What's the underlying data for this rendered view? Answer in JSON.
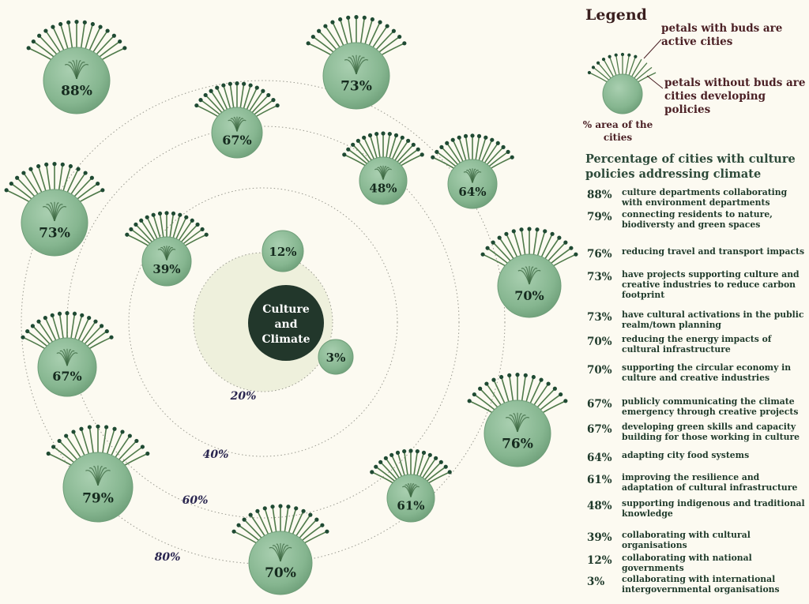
{
  "center_label": "Culture and Climate",
  "center_lines": [
    "Culture",
    "and",
    "Climate"
  ],
  "ring_labels": [
    "20%",
    "40%",
    "60%",
    "80%"
  ],
  "flowers": [
    {
      "value": "88%",
      "buds": true
    },
    {
      "value": "73%",
      "buds": true
    },
    {
      "value": "67%",
      "buds": true
    },
    {
      "value": "48%",
      "buds": true
    },
    {
      "value": "64%",
      "buds": true
    },
    {
      "value": "70%",
      "buds": true
    },
    {
      "value": "76%",
      "buds": true
    },
    {
      "value": "61%",
      "buds": true
    },
    {
      "value": "70%",
      "buds": true
    },
    {
      "value": "79%",
      "buds": true
    },
    {
      "value": "67%",
      "buds": true
    },
    {
      "value": "73%",
      "buds": true
    },
    {
      "value": "39%",
      "buds": true
    }
  ],
  "plain_circles": [
    "12%",
    "3%"
  ],
  "legend": {
    "title": "Legend",
    "petals_with_buds": "petals with buds are active cities",
    "petals_without_buds": "petals without  buds are cities developing policies",
    "area_note": "% area of the cities",
    "percentage_title": "Percentage of cities with culture policies addressing climate",
    "items": [
      {
        "value": "88%",
        "text": "culture departments collaborating with environment departments"
      },
      {
        "value": "79%",
        "text": "connecting residents to nature, biodiversty  and green spaces"
      },
      {
        "value": "76%",
        "text": "reducing travel and transport impacts"
      },
      {
        "value": "73%",
        "text": "have projects supporting culture and creative industries to reduce carbon footprint"
      },
      {
        "value": "73%",
        "text": "have cultural activations in the public realm/town planning"
      },
      {
        "value": "70%",
        "text": "reducing the energy impacts of cultural infrastructure"
      },
      {
        "value": "70%",
        "text": "supporting the circular economy in culture and creative industries"
      },
      {
        "value": "67%",
        "text": "publicly communicating the climate emergency through creative projects"
      },
      {
        "value": "67%",
        "text": "developing green skills and capacity building for those working in culture"
      },
      {
        "value": "64%",
        "text": "adapting city food systems"
      },
      {
        "value": "61%",
        "text": "improving the resilience and adaptation of cultural infrastructure"
      },
      {
        "value": "48%",
        "text": "supporting indigenous and traditional knowledge"
      },
      {
        "value": "39%",
        "text": "collaborating with cultural organisations"
      },
      {
        "value": "12%",
        "text": "collaborating with national governments"
      },
      {
        "value": "3%",
        "text": "collaborating with international intergovernmental organisations"
      }
    ]
  },
  "colors": {
    "background": "#fcfaf1",
    "bubble": "#8dbb97",
    "bubble_edge": "#6f9e79",
    "petal": "#4f7a4a",
    "bud": "#1f4a33",
    "center": "#22372b",
    "inner_zone": "#eef0dc",
    "ring_line": "#9a9a90",
    "ring_label": "#2a2650"
  }
}
